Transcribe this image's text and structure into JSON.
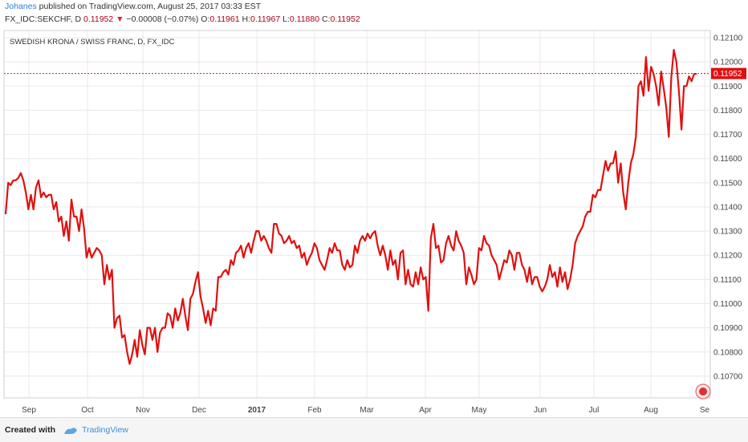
{
  "header": {
    "author": "Johanes",
    "published_text": "published on TradingView.com, August 25, 2017 03:33 EST",
    "symbol_line": "FX_IDC:SEKCHF, D",
    "last_price": "0.11952",
    "arrow": "▼",
    "change": "−0.00008 (−0.07%)",
    "o_label": "O:",
    "o_value": "0.11961",
    "h_label": "H:",
    "h_value": "0.11967",
    "l_label": "L:",
    "l_value": "0.11880",
    "c_label": "C:",
    "c_value": "0.11952"
  },
  "footer": {
    "created_with": "Created with",
    "brand": "TradingView"
  },
  "chart_data": {
    "type": "line",
    "title": "SWEDISH KRONA / SWISS FRANC, D, FX_IDC",
    "y_ticks": [
      "0.12100",
      "0.12000",
      "0.11900",
      "0.11800",
      "0.11700",
      "0.11600",
      "0.11500",
      "0.11400",
      "0.11300",
      "0.11200",
      "0.11100",
      "0.11000",
      "0.10900",
      "0.10800",
      "0.10700"
    ],
    "x_ticks": [
      "Sep",
      "Oct",
      "Nov",
      "Dec",
      "2017",
      "Feb",
      "Mar",
      "Apr",
      "May",
      "Jun",
      "Jul",
      "Aug",
      "Se"
    ],
    "ylim": [
      0.1061,
      0.1213
    ],
    "last_value_label": "0.11952",
    "last_value": 0.11952,
    "line_color": "#e01010",
    "grid": true,
    "series": [
      {
        "values": [
          0.1137,
          0.115,
          0.1149,
          0.1151,
          0.1151,
          0.1152,
          0.1154,
          0.1151,
          0.1146,
          0.1139,
          0.1145,
          0.1139,
          0.1148,
          0.1151,
          0.1144,
          0.1146,
          0.1144,
          0.1145,
          0.1145,
          0.1139,
          0.1142,
          0.1134,
          0.1136,
          0.1128,
          0.1134,
          0.1126,
          0.1143,
          0.1136,
          0.1136,
          0.113,
          0.1139,
          0.1131,
          0.1119,
          0.1123,
          0.1119,
          0.1121,
          0.1123,
          0.1122,
          0.112,
          0.1108,
          0.1116,
          0.111,
          0.1114,
          0.109,
          0.1094,
          0.1095,
          0.1086,
          0.1087,
          0.108,
          0.1075,
          0.1079,
          0.1085,
          0.1078,
          0.1089,
          0.1083,
          0.1079,
          0.109,
          0.109,
          0.1085,
          0.109,
          0.108,
          0.1088,
          0.109,
          0.109,
          0.1096,
          0.1095,
          0.109,
          0.1098,
          0.1093,
          0.1096,
          0.1102,
          0.1095,
          0.1089,
          0.1102,
          0.1104,
          0.1109,
          0.1113,
          0.1103,
          0.1098,
          0.1092,
          0.1097,
          0.1091,
          0.1098,
          0.1097,
          0.1111,
          0.1111,
          0.1113,
          0.1114,
          0.1112,
          0.1118,
          0.1116,
          0.1121,
          0.1122,
          0.1124,
          0.1119,
          0.1123,
          0.1125,
          0.1121,
          0.1126,
          0.113,
          0.113,
          0.1126,
          0.1128,
          0.1126,
          0.1123,
          0.1121,
          0.1133,
          0.1133,
          0.1129,
          0.1128,
          0.1125,
          0.1126,
          0.1128,
          0.1125,
          0.1126,
          0.1123,
          0.1124,
          0.1119,
          0.1121,
          0.1116,
          0.1119,
          0.1121,
          0.1125,
          0.1123,
          0.1118,
          0.1116,
          0.1114,
          0.1118,
          0.1123,
          0.1121,
          0.1125,
          0.1122,
          0.1122,
          0.1116,
          0.1114,
          0.1118,
          0.1115,
          0.1116,
          0.1124,
          0.1121,
          0.1126,
          0.1128,
          0.1126,
          0.1129,
          0.1127,
          0.1129,
          0.113,
          0.1124,
          0.112,
          0.1124,
          0.112,
          0.1114,
          0.1122,
          0.1116,
          0.1118,
          0.111,
          0.1121,
          0.1122,
          0.1108,
          0.1114,
          0.1108,
          0.1107,
          0.1113,
          0.1108,
          0.1115,
          0.111,
          0.1111,
          0.1097,
          0.1127,
          0.1133,
          0.1123,
          0.1124,
          0.1117,
          0.1118,
          0.1125,
          0.1128,
          0.1124,
          0.1122,
          0.113,
          0.1126,
          0.1124,
          0.1121,
          0.1108,
          0.1115,
          0.1112,
          0.1108,
          0.111,
          0.1123,
          0.1122,
          0.1128,
          0.1125,
          0.1124,
          0.112,
          0.1118,
          0.1116,
          0.111,
          0.1114,
          0.1118,
          0.1117,
          0.1122,
          0.112,
          0.1114,
          0.1121,
          0.1121,
          0.1116,
          0.1114,
          0.1109,
          0.1115,
          0.1108,
          0.1111,
          0.1111,
          0.1107,
          0.1105,
          0.1107,
          0.111,
          0.1116,
          0.1111,
          0.1113,
          0.1107,
          0.1115,
          0.1109,
          0.1113,
          0.1106,
          0.111,
          0.1116,
          0.1125,
          0.1128,
          0.113,
          0.1132,
          0.1136,
          0.1138,
          0.1138,
          0.1145,
          0.1144,
          0.1147,
          0.1147,
          0.1153,
          0.1159,
          0.1155,
          0.1158,
          0.1158,
          0.1163,
          0.115,
          0.1158,
          0.1146,
          0.1139,
          0.115,
          0.1158,
          0.1162,
          0.1169,
          0.119,
          0.1192,
          0.1186,
          0.1202,
          0.1188,
          0.1198,
          0.1195,
          0.119,
          0.1182,
          0.1196,
          0.1189,
          0.1181,
          0.1169,
          0.1194,
          0.1205,
          0.12,
          0.1188,
          0.1172,
          0.119,
          0.119,
          0.1194,
          0.1192,
          0.1195,
          0.1195
        ]
      }
    ]
  }
}
